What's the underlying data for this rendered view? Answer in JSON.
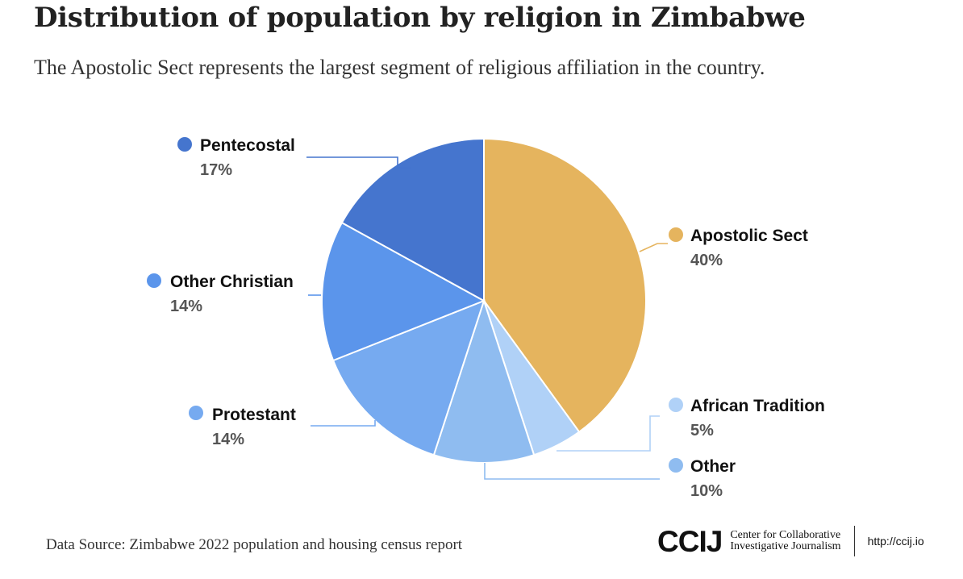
{
  "header": {
    "title": "Distribution of population by religion in Zimbabwe",
    "subtitle": "The Apostolic Sect represents the largest segment of religious affiliation in the country."
  },
  "chart_data": {
    "type": "pie",
    "title": "Distribution of population by religion in Zimbabwe",
    "subtitle": "The Apostolic Sect represents the largest segment of religious affiliation in the country.",
    "legend": "none",
    "slices": [
      {
        "name": "Apostolic Sect",
        "value": 40,
        "label": "40%",
        "color": "#E5B45E"
      },
      {
        "name": "African Tradition",
        "value": 5,
        "label": "5%",
        "color": "#B0D1F7"
      },
      {
        "name": "Other",
        "value": 10,
        "label": "10%",
        "color": "#8FBCF0"
      },
      {
        "name": "Protestant",
        "value": 14,
        "label": "14%",
        "color": "#76AAF0"
      },
      {
        "name": "Other Christian",
        "value": 14,
        "label": "14%",
        "color": "#5B95EB"
      },
      {
        "name": "Pentecostal",
        "value": 17,
        "label": "17%",
        "color": "#4575CE"
      }
    ]
  },
  "footer": {
    "source": "Data Source: Zimbabwe 2022 population and housing census report",
    "brand_logo": "CCIJ",
    "brand_line1": "Center for Collaborative",
    "brand_line2": "Investigative Journalism",
    "brand_url": "http://ccij.io"
  }
}
